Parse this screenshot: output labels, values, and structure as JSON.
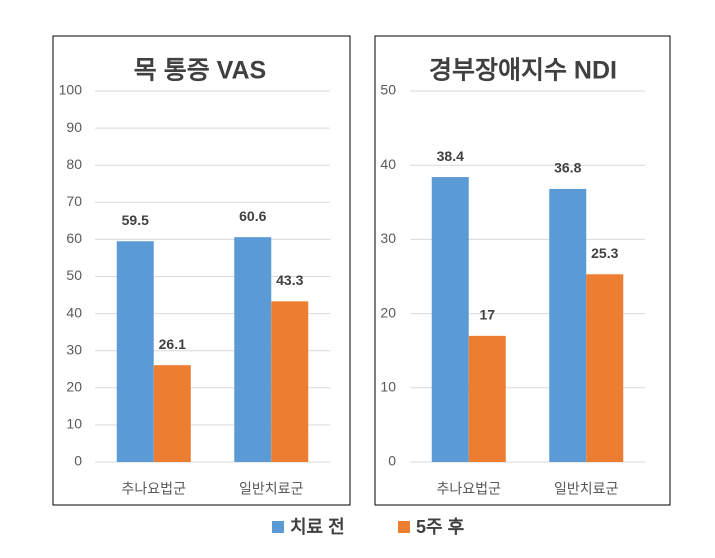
{
  "chart_data": [
    {
      "type": "bar",
      "title": "목 통증 VAS",
      "categories": [
        "추나요법군",
        "일반치료군"
      ],
      "series": [
        {
          "name": "치료 전",
          "color": "#5b9bd5",
          "values": [
            59.5,
            60.6
          ]
        },
        {
          "name": "5주 후",
          "color": "#ed7d31",
          "values": [
            26.1,
            43.3
          ]
        }
      ],
      "ylim": [
        0,
        100
      ],
      "yticks": [
        0,
        10,
        20,
        30,
        40,
        50,
        60,
        70,
        80,
        90,
        100
      ],
      "grid": true
    },
    {
      "type": "bar",
      "title": "경부장애지수 NDI",
      "categories": [
        "추나요법군",
        "일반치료군"
      ],
      "series": [
        {
          "color": "#5b9bd5",
          "values": [
            38.4,
            36.8
          ]
        },
        {
          "color": "#ed7d31",
          "values": [
            17,
            25.3
          ]
        }
      ],
      "ylim": [
        0,
        50
      ],
      "yticks": [
        0,
        10,
        20,
        30,
        40,
        50
      ],
      "grid": true
    }
  ]
}
